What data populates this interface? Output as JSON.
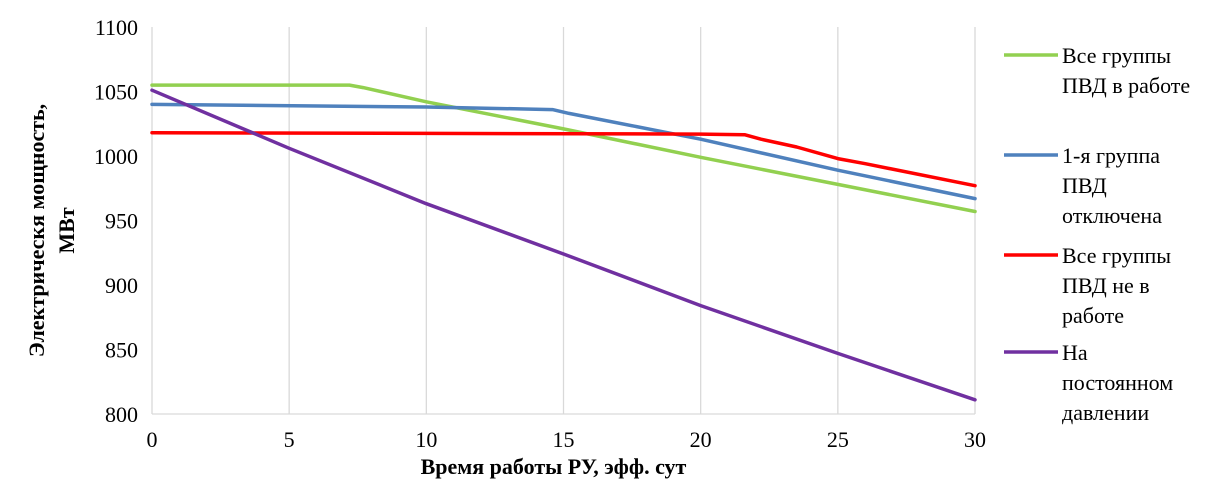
{
  "chart_data": {
    "type": "line",
    "xlabel": "Время работы РУ, эфф. сут",
    "ylabel_lines": [
      "Электрическя мощность,",
      "МВт"
    ],
    "xlim": [
      0,
      30
    ],
    "ylim": [
      800,
      1100
    ],
    "x_ticks": [
      0,
      5,
      10,
      15,
      20,
      25,
      30
    ],
    "y_ticks": [
      800,
      850,
      900,
      950,
      1000,
      1050,
      1100
    ],
    "grid": "vertical",
    "legend_position": "right",
    "series": [
      {
        "name_lines": [
          "Все группы",
          "ПВД в работе"
        ],
        "color": "#92d050",
        "points": [
          [
            0,
            1055
          ],
          [
            7.2,
            1055
          ],
          [
            7.7,
            1053
          ],
          [
            10,
            1042
          ],
          [
            15,
            1021
          ],
          [
            20,
            999
          ],
          [
            25,
            978
          ],
          [
            30,
            957
          ]
        ]
      },
      {
        "name_lines": [
          "1-я группа",
          "ПВД",
          "отключена"
        ],
        "color": "#4f81bd",
        "points": [
          [
            0,
            1040
          ],
          [
            10,
            1038
          ],
          [
            14.6,
            1036
          ],
          [
            15.2,
            1033
          ],
          [
            20,
            1013
          ],
          [
            25,
            989
          ],
          [
            30,
            967
          ]
        ]
      },
      {
        "name_lines": [
          "Все группы",
          "ПВД не в",
          "работе"
        ],
        "color": "#ff0000",
        "points": [
          [
            0,
            1018
          ],
          [
            10,
            1017.5
          ],
          [
            20,
            1017
          ],
          [
            21.6,
            1016.5
          ],
          [
            22.2,
            1013
          ],
          [
            23.5,
            1007
          ],
          [
            25,
            998
          ],
          [
            26,
            994
          ],
          [
            30,
            977
          ]
        ]
      },
      {
        "name_lines": [
          "На",
          "постоянном",
          "давлении"
        ],
        "color": "#7030a0",
        "points": [
          [
            0,
            1051
          ],
          [
            5,
            1006
          ],
          [
            10,
            963
          ],
          [
            15,
            924
          ],
          [
            20,
            884
          ],
          [
            25,
            847
          ],
          [
            30,
            811
          ]
        ]
      }
    ]
  }
}
